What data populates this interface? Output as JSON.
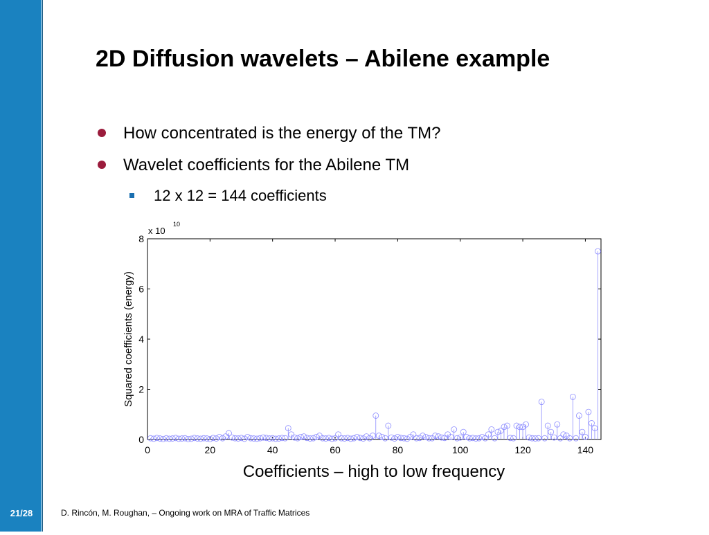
{
  "slide": {
    "title": "2D Diffusion wavelets – Abilene example",
    "bullets": [
      "How concentrated is the energy of the TM?",
      "Wavelet coefficients for the Abilene TM"
    ],
    "sub_bullets": [
      "12 x 12 = 144 coefficients"
    ],
    "page": "21/28",
    "footer": "D. Rincón, M. Roughan, –  Ongoing work on MRA of Traffic Matrices"
  },
  "chart_data": {
    "type": "stem",
    "xlabel": "Coefficients – high to low frequency",
    "ylabel": "Squared coefficients (energy)",
    "y_exponent": {
      "base": "x 10",
      "power": "10"
    },
    "color": "#8c8cff",
    "xlim": [
      0,
      145
    ],
    "xticks": [
      0,
      20,
      40,
      60,
      80,
      100,
      120,
      140
    ],
    "ylim": [
      0,
      8
    ],
    "yticks": [
      0,
      2,
      4,
      6,
      8
    ],
    "x": [
      1,
      2,
      3,
      4,
      5,
      6,
      7,
      8,
      9,
      10,
      11,
      12,
      13,
      14,
      15,
      16,
      17,
      18,
      19,
      20,
      21,
      22,
      23,
      24,
      25,
      26,
      27,
      28,
      29,
      30,
      31,
      32,
      33,
      34,
      35,
      36,
      37,
      38,
      39,
      40,
      41,
      42,
      43,
      44,
      45,
      46,
      47,
      48,
      49,
      50,
      51,
      52,
      53,
      54,
      55,
      56,
      57,
      58,
      59,
      60,
      61,
      62,
      63,
      64,
      65,
      66,
      67,
      68,
      69,
      70,
      71,
      72,
      73,
      74,
      75,
      76,
      77,
      78,
      79,
      80,
      81,
      82,
      83,
      84,
      85,
      86,
      87,
      88,
      89,
      90,
      91,
      92,
      93,
      94,
      95,
      96,
      97,
      98,
      99,
      100,
      101,
      102,
      103,
      104,
      105,
      106,
      107,
      108,
      109,
      110,
      111,
      112,
      113,
      114,
      115,
      116,
      117,
      118,
      119,
      120,
      121,
      122,
      123,
      124,
      125,
      126,
      127,
      128,
      129,
      130,
      131,
      132,
      133,
      134,
      135,
      136,
      137,
      138,
      139,
      140,
      141,
      142,
      143,
      144
    ],
    "values": [
      0.05,
      0.03,
      0.06,
      0.04,
      0.02,
      0.05,
      0.03,
      0.04,
      0.06,
      0.03,
      0.04,
      0.05,
      0.02,
      0.03,
      0.06,
      0.04,
      0.03,
      0.05,
      0.04,
      0.02,
      0.06,
      0.04,
      0.1,
      0.05,
      0.12,
      0.25,
      0.08,
      0.05,
      0.04,
      0.06,
      0.03,
      0.1,
      0.05,
      0.04,
      0.03,
      0.05,
      0.08,
      0.06,
      0.04,
      0.05,
      0.03,
      0.04,
      0.06,
      0.05,
      0.45,
      0.2,
      0.08,
      0.05,
      0.1,
      0.12,
      0.06,
      0.04,
      0.05,
      0.1,
      0.15,
      0.05,
      0.04,
      0.06,
      0.03,
      0.05,
      0.2,
      0.05,
      0.04,
      0.06,
      0.03,
      0.05,
      0.1,
      0.06,
      0.04,
      0.12,
      0.05,
      0.15,
      0.95,
      0.15,
      0.1,
      0.05,
      0.55,
      0.08,
      0.04,
      0.1,
      0.06,
      0.05,
      0.03,
      0.1,
      0.2,
      0.05,
      0.06,
      0.15,
      0.1,
      0.05,
      0.05,
      0.15,
      0.12,
      0.08,
      0.06,
      0.2,
      0.1,
      0.4,
      0.05,
      0.08,
      0.3,
      0.1,
      0.05,
      0.06,
      0.04,
      0.05,
      0.1,
      0.05,
      0.2,
      0.4,
      0.05,
      0.3,
      0.35,
      0.5,
      0.55,
      0.06,
      0.05,
      0.55,
      0.5,
      0.5,
      0.6,
      0.08,
      0.05,
      0.04,
      0.05,
      1.5,
      0.05,
      0.55,
      0.3,
      0.08,
      0.6,
      0.05,
      0.2,
      0.15,
      0.05,
      1.7,
      0.05,
      0.95,
      0.3,
      0.1,
      1.1,
      0.65,
      0.45,
      7.5
    ]
  }
}
